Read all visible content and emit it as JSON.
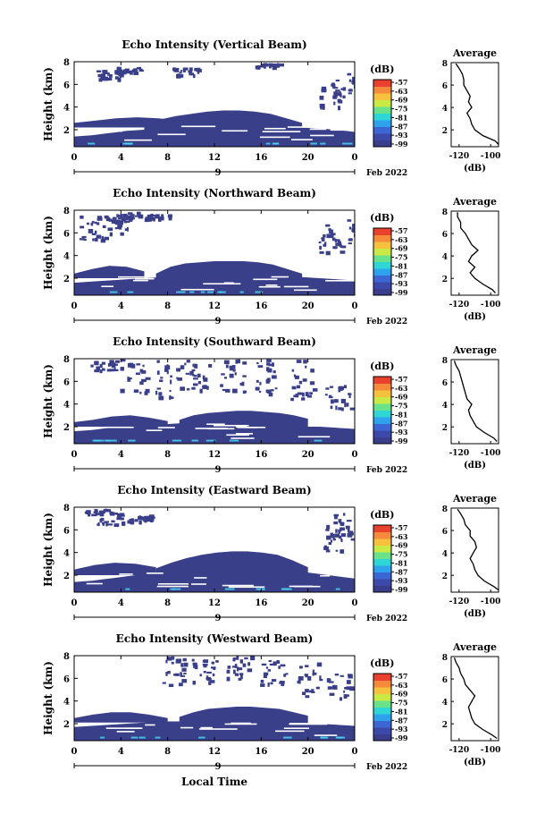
{
  "figure": {
    "xlabel_bottom": "Local Time",
    "date_day": "9",
    "date_label": "Feb 2022",
    "colorbar_unit": "(dB)",
    "colorbar_ticks": [
      "-57",
      "-63",
      "-69",
      "-75",
      "-81",
      "-87",
      "-93",
      "-99"
    ],
    "colorbar_colors": [
      "#3a3d8c",
      "#3b4aa8",
      "#3c66d4",
      "#2fa2ee",
      "#2fd6d6",
      "#69e28a",
      "#c9ea45",
      "#f6c23e",
      "#f48a3a",
      "#e8412e"
    ],
    "data_color": "#3a3f8a",
    "highlight_color": "#46d3f0",
    "xticks": [
      "0",
      "4",
      "8",
      "12",
      "16",
      "20",
      "0"
    ],
    "yticks": [
      "2",
      "4",
      "6",
      "8"
    ],
    "ylabel": "Height (km)",
    "avg_title": "Average",
    "avg_xticks": [
      "-120",
      "-100"
    ],
    "avg_xlabel": "(dB)"
  },
  "chart_data": [
    {
      "type": "heatmap",
      "title": "Echo Intensity (Vertical Beam)",
      "ylabel": "Height (km)",
      "xlim": [
        0,
        24
      ],
      "ylim": [
        0.5,
        8
      ],
      "colorbar_range": [
        -99,
        -57
      ],
      "layers": [
        {
          "x0": 0,
          "x1": 24,
          "bottom": 0.5,
          "top": [
            1.4,
            1.5,
            1.7,
            1.9,
            2.0,
            2.2,
            2.4,
            2.6,
            2.6,
            2.5,
            2.4,
            2.4,
            2.3,
            2.2,
            2.1,
            2.0,
            1.8
          ],
          "db": -99
        },
        {
          "x0": 6,
          "x1": 19.5,
          "bottom": 1.5,
          "top": [
            2.4,
            2.9,
            3.2,
            3.4,
            3.6,
            3.7,
            3.7,
            3.6,
            3.4,
            3.0,
            2.6
          ],
          "db": -98
        },
        {
          "x0": 0,
          "x1": 9,
          "bottom": 2.2,
          "top": [
            2.6,
            2.8,
            3.0,
            3.1,
            3.0,
            2.8
          ],
          "db": -99
        }
      ],
      "upper_patches": [
        [
          3.0,
          6.5,
          7.3
        ],
        [
          4.5,
          7.0,
          7.6
        ],
        [
          9.5,
          6.8,
          7.5
        ],
        [
          22.0,
          4.0,
          6.5
        ],
        [
          23.2,
          5.0,
          7.0
        ],
        [
          16.5,
          7.6,
          7.9
        ]
      ],
      "average": {
        "heights": [
          0.7,
          1.0,
          1.5,
          2.0,
          2.5,
          3.0,
          3.5,
          4.0,
          4.5,
          5.0,
          5.5,
          6.0,
          6.5,
          7.0,
          7.5,
          7.9
        ],
        "db": [
          -95,
          -97,
          -105,
          -110,
          -112,
          -113,
          -115,
          -112,
          -114,
          -113,
          -115,
          -117,
          -117,
          -118,
          -120,
          -122
        ],
        "xlim": [
          -125,
          -95
        ],
        "ylim": [
          0.5,
          8
        ]
      }
    },
    {
      "type": "heatmap",
      "title": "Echo Intensity (Northward Beam)",
      "ylabel": "Height (km)",
      "xlim": [
        0,
        24
      ],
      "ylim": [
        0.5,
        8
      ],
      "colorbar_range": [
        -99,
        -57
      ],
      "layers": [
        {
          "x0": 0,
          "x1": 24,
          "bottom": 0.5,
          "top": [
            1.6,
            1.7,
            1.8,
            1.9,
            2.0,
            2.1,
            2.2,
            2.4,
            2.5,
            2.5,
            2.4,
            2.3,
            2.2,
            2.1,
            2.0,
            1.9,
            1.8
          ],
          "db": -99
        },
        {
          "x0": 7,
          "x1": 19.5,
          "bottom": 1.8,
          "top": [
            2.4,
            3.0,
            3.3,
            3.4,
            3.5,
            3.5,
            3.5,
            3.4,
            3.2,
            2.8,
            2.4
          ],
          "db": -98
        },
        {
          "x0": 0,
          "x1": 6,
          "bottom": 2.0,
          "top": [
            2.4,
            2.8,
            3.1,
            3.0,
            2.6
          ],
          "db": -99
        }
      ],
      "upper_patches": [
        [
          1.5,
          5.3,
          7.6
        ],
        [
          3.5,
          6.0,
          7.8
        ],
        [
          4.5,
          7.0,
          7.9
        ],
        [
          7.0,
          7.2,
          7.7
        ],
        [
          22.0,
          4.3,
          6.8
        ],
        [
          23.2,
          4.8,
          7.2
        ]
      ],
      "average": {
        "heights": [
          0.7,
          1.0,
          1.5,
          2.0,
          2.5,
          3.0,
          3.5,
          4.0,
          4.5,
          5.0,
          5.5,
          6.0,
          6.5,
          7.0,
          7.5,
          7.9
        ],
        "db": [
          -97,
          -99,
          -105,
          -110,
          -113,
          -110,
          -114,
          -112,
          -108,
          -112,
          -114,
          -116,
          -119,
          -119,
          -121,
          -121
        ],
        "xlim": [
          -125,
          -95
        ],
        "ylim": [
          0.5,
          8
        ]
      }
    },
    {
      "type": "heatmap",
      "title": "Echo Intensity (Southward Beam)",
      "ylabel": "Height (km)",
      "xlim": [
        0,
        24
      ],
      "ylim": [
        0.5,
        8
      ],
      "colorbar_range": [
        -99,
        -57
      ],
      "layers": [
        {
          "x0": 0,
          "x1": 24,
          "bottom": 0.5,
          "top": [
            1.6,
            1.7,
            1.9,
            2.0,
            2.1,
            2.2,
            2.3,
            2.4,
            2.4,
            2.3,
            2.3,
            2.2,
            2.1,
            2.0,
            2.0,
            1.9,
            1.8
          ],
          "db": -99
        },
        {
          "x0": 9,
          "x1": 20,
          "bottom": 2.0,
          "top": [
            2.6,
            3.0,
            3.2,
            3.3,
            3.4,
            3.4,
            3.3,
            3.2,
            3.0,
            2.7
          ],
          "db": -98
        },
        {
          "x0": 0,
          "x1": 8,
          "bottom": 2.0,
          "top": [
            2.4,
            2.6,
            2.9,
            3.0,
            2.8,
            2.5
          ],
          "db": -99
        }
      ],
      "upper_patches": [
        [
          5.0,
          5.0,
          8.0
        ],
        [
          8.0,
          4.5,
          8.0
        ],
        [
          10.5,
          5.0,
          8.0
        ],
        [
          13.5,
          5.0,
          8.0
        ],
        [
          16.5,
          5.0,
          8.0
        ],
        [
          19.5,
          4.5,
          8.0
        ],
        [
          22.5,
          3.5,
          6.0
        ],
        [
          2.5,
          7.0,
          7.9
        ]
      ],
      "average": {
        "heights": [
          0.7,
          1.0,
          1.5,
          2.0,
          2.5,
          3.0,
          3.5,
          4.0,
          4.5,
          5.0,
          5.5,
          6.0,
          6.5,
          7.0,
          7.5,
          7.9
        ],
        "db": [
          -96,
          -98,
          -104,
          -109,
          -111,
          -113,
          -114,
          -112,
          -115,
          -116,
          -117,
          -118,
          -119,
          -120,
          -122,
          -123
        ],
        "xlim": [
          -125,
          -95
        ],
        "ylim": [
          0.5,
          8
        ]
      }
    },
    {
      "type": "heatmap",
      "title": "Echo Intensity (Eastward Beam)",
      "ylabel": "Height (km)",
      "xlim": [
        0,
        24
      ],
      "ylim": [
        0.5,
        8
      ],
      "colorbar_range": [
        -99,
        -57
      ],
      "layers": [
        {
          "x0": 0,
          "x1": 24,
          "bottom": 0.5,
          "top": [
            1.4,
            1.5,
            1.7,
            1.9,
            2.1,
            2.3,
            2.5,
            2.7,
            2.8,
            2.8,
            2.7,
            2.6,
            2.5,
            2.3,
            2.1,
            1.9,
            1.7
          ],
          "db": -99
        },
        {
          "x0": 7,
          "x1": 20,
          "bottom": 1.8,
          "top": [
            2.6,
            3.1,
            3.5,
            3.8,
            4.0,
            4.1,
            4.1,
            4.0,
            3.8,
            3.3,
            2.7
          ],
          "db": -98
        },
        {
          "x0": 0,
          "x1": 7,
          "bottom": 2.0,
          "top": [
            2.5,
            2.9,
            3.1,
            3.0,
            2.7
          ],
          "db": -99
        }
      ],
      "upper_patches": [
        [
          3.0,
          6.5,
          7.6
        ],
        [
          5.5,
          6.8,
          7.4
        ],
        [
          21.8,
          4.2,
          6.8
        ],
        [
          23.2,
          5.0,
          7.5
        ],
        [
          2.0,
          7.4,
          7.9
        ]
      ],
      "average": {
        "heights": [
          0.7,
          1.0,
          1.5,
          2.0,
          2.5,
          3.0,
          3.5,
          4.0,
          4.5,
          5.0,
          5.5,
          6.0,
          6.5,
          7.0,
          7.5,
          7.9
        ],
        "db": [
          -95,
          -98,
          -104,
          -108,
          -110,
          -111,
          -113,
          -111,
          -109,
          -110,
          -113,
          -113,
          -116,
          -117,
          -119,
          -121
        ],
        "xlim": [
          -125,
          -95
        ],
        "ylim": [
          0.5,
          8
        ]
      }
    },
    {
      "type": "heatmap",
      "title": "Echo Intensity (Westward Beam)",
      "ylabel": "Height (km)",
      "xlim": [
        0,
        24
      ],
      "ylim": [
        0.5,
        8
      ],
      "colorbar_range": [
        -99,
        -57
      ],
      "layers": [
        {
          "x0": 0,
          "x1": 24,
          "bottom": 0.5,
          "top": [
            1.7,
            1.8,
            1.9,
            2.0,
            2.1,
            2.2,
            2.2,
            2.3,
            2.3,
            2.3,
            2.2,
            2.2,
            2.1,
            2.1,
            2.0,
            1.9,
            1.8
          ],
          "db": -99
        },
        {
          "x0": 9,
          "x1": 20,
          "bottom": 2.0,
          "top": [
            2.6,
            3.0,
            3.3,
            3.4,
            3.5,
            3.5,
            3.4,
            3.3,
            3.0,
            2.7
          ],
          "db": -98
        },
        {
          "x0": 0,
          "x1": 8,
          "bottom": 2.1,
          "top": [
            2.5,
            2.8,
            3.0,
            3.0,
            2.8,
            2.5
          ],
          "db": -99
        }
      ],
      "upper_patches": [
        [
          8.5,
          5.5,
          8.0
        ],
        [
          11.0,
          5.5,
          7.8
        ],
        [
          14.0,
          6.0,
          8.0
        ],
        [
          17.0,
          5.5,
          7.8
        ],
        [
          20.0,
          4.5,
          7.5
        ],
        [
          22.5,
          4.0,
          6.8
        ]
      ],
      "average": {
        "heights": [
          0.7,
          1.0,
          1.5,
          2.0,
          2.5,
          3.0,
          3.5,
          4.0,
          4.5,
          5.0,
          5.5,
          6.0,
          6.5,
          7.0,
          7.5,
          7.9
        ],
        "db": [
          -96,
          -99,
          -105,
          -110,
          -112,
          -113,
          -114,
          -112,
          -110,
          -113,
          -116,
          -117,
          -119,
          -120,
          -122,
          -123
        ],
        "xlim": [
          -125,
          -95
        ],
        "ylim": [
          0.5,
          8
        ]
      }
    }
  ]
}
